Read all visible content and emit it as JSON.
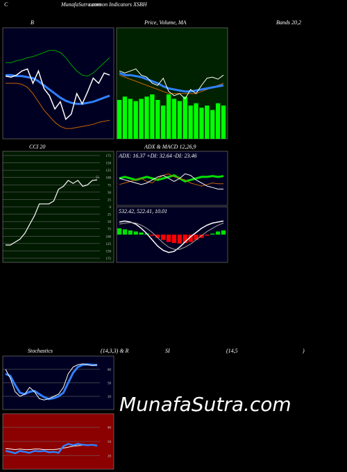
{
  "header": {
    "letter": "C",
    "site": "MunafaSutra.com",
    "title": "common Indicators XSBH"
  },
  "labels": {
    "bb_left": "B",
    "price": "Price, Volume, MA",
    "bb_right": "Bands 20,2",
    "cci": "CCI 20",
    "adx_macd": "ADX  & MACD 12,26,9",
    "stoch": "Stochastics",
    "stoch_params": "(14,3,3) & R",
    "rsi": "SI",
    "rsi_params": "(14,5",
    "close": ")"
  },
  "watermark": "MunafaSutra.com",
  "chart_data": [
    {
      "type": "line",
      "background": "#000022",
      "ylim": [
        0,
        100
      ],
      "series": [
        {
          "color": "#00a000",
          "width": 1,
          "values": [
            70,
            70,
            72,
            73,
            75,
            76,
            78,
            80,
            82,
            82,
            80,
            75,
            68,
            62,
            58,
            57,
            60,
            65,
            70,
            75
          ]
        },
        {
          "color": "#3080ff",
          "width": 3,
          "values": [
            58,
            58,
            57,
            57,
            56,
            55,
            52,
            48,
            44,
            40,
            36,
            33,
            31,
            30,
            30,
            31,
            32,
            34,
            36,
            38
          ]
        },
        {
          "color": "#c86400",
          "width": 1,
          "values": [
            50,
            50,
            50,
            49,
            46,
            40,
            32,
            24,
            18,
            12,
            8,
            6,
            6,
            7,
            8,
            9,
            10,
            12,
            13,
            14
          ]
        },
        {
          "color": "#ffffff",
          "width": 1.5,
          "values": [
            57,
            56,
            58,
            62,
            64,
            50,
            62,
            45,
            38,
            25,
            32,
            15,
            20,
            40,
            30,
            42,
            55,
            50,
            60,
            58
          ]
        }
      ]
    },
    {
      "type": "line",
      "background": "#002200",
      "ylim": [
        0,
        100
      ],
      "y2lim": [
        0,
        100
      ],
      "series": [
        {
          "color": "#00ff00",
          "axis": "y2",
          "style": "bar",
          "values": [
            35,
            38,
            36,
            34,
            36,
            38,
            40,
            35,
            30,
            40,
            36,
            34,
            38,
            30,
            32,
            28,
            30,
            26,
            32,
            30
          ]
        },
        {
          "color": "#c86400",
          "width": 1,
          "values": [
            58,
            56,
            54,
            52,
            50,
            48,
            46,
            44,
            42,
            40,
            40,
            40,
            40,
            40,
            40,
            42,
            44,
            46,
            48,
            50
          ]
        },
        {
          "color": "#3080ff",
          "width": 3,
          "values": [
            60,
            58,
            58,
            57,
            56,
            54,
            52,
            50,
            47,
            45,
            44,
            43,
            42,
            42,
            43,
            44,
            45,
            46,
            47,
            48
          ]
        },
        {
          "color": "#ffffff",
          "width": 1,
          "values": [
            62,
            60,
            62,
            64,
            58,
            56,
            50,
            48,
            55,
            42,
            38,
            40,
            35,
            44,
            40,
            48,
            55,
            56,
            54,
            58
          ]
        }
      ]
    },
    {
      "type": "line",
      "background": "#001a00",
      "grid": true,
      "ylim": [
        -175,
        175
      ],
      "annotation": "55",
      "yticks": [
        {
          "value": 175,
          "label": "175"
        },
        {
          "value": 150,
          "label": "150"
        },
        {
          "value": 125,
          "label": "125"
        },
        {
          "value": 100,
          "label": "100"
        },
        {
          "value": 75,
          "label": "75"
        },
        {
          "value": 50,
          "label": "50"
        },
        {
          "value": 25,
          "label": "25"
        },
        0,
        {
          "value": -25,
          "label": "25"
        },
        {
          "value": -50,
          "label": "50"
        },
        {
          "value": -75,
          "label": "75"
        },
        {
          "value": -100,
          "label": "100"
        },
        {
          "value": -125,
          "label": "125"
        },
        {
          "value": -150,
          "label": "150"
        },
        {
          "value": -175,
          "label": "175"
        }
      ],
      "series": [
        {
          "color": "#ffffff",
          "width": 1.2,
          "values": [
            -130,
            -130,
            -120,
            -110,
            -90,
            -60,
            -30,
            10,
            10,
            10,
            20,
            60,
            70,
            90,
            80,
            90,
            70,
            75,
            90,
            92
          ]
        }
      ]
    },
    {
      "type": "line",
      "background": "#000022",
      "title": "ADX: 16.37 +DI: 32.64 -DI: 23.46",
      "ylim": [
        0,
        60
      ],
      "series": [
        {
          "color": "#00e000",
          "width": 3,
          "values": [
            30,
            32,
            30,
            28,
            30,
            32,
            30,
            28,
            30,
            32,
            34,
            30,
            26,
            28,
            30,
            32,
            32,
            33,
            32,
            33
          ]
        },
        {
          "color": "#c86400",
          "width": 1,
          "values": [
            22,
            24,
            26,
            28,
            30,
            26,
            24,
            30,
            34,
            36,
            32,
            30,
            28,
            24,
            22,
            20,
            22,
            24,
            23,
            23
          ]
        },
        {
          "color": "#ffffff",
          "width": 1,
          "values": [
            30,
            28,
            26,
            24,
            22,
            24,
            28,
            32,
            34,
            30,
            26,
            30,
            36,
            34,
            28,
            24,
            20,
            18,
            16,
            16
          ]
        }
      ]
    },
    {
      "type": "line",
      "background": "#000022",
      "title": "532.42, 522.41, 10.01",
      "ylim": [
        -45,
        45
      ],
      "series": [
        {
          "color": "#00e000",
          "negative_color": "#ff0000",
          "style": "bar",
          "values": [
            12,
            10,
            8,
            6,
            4,
            2,
            -2,
            -6,
            -10,
            -14,
            -16,
            -17,
            -16,
            -14,
            -10,
            -6,
            -2,
            2,
            6,
            8
          ]
        },
        {
          "color": "#ffffff",
          "width": 1.5,
          "values": [
            24,
            26,
            24,
            20,
            12,
            2,
            -10,
            -22,
            -30,
            -34,
            -32,
            -24,
            -14,
            -4,
            4,
            12,
            18,
            22,
            24,
            26
          ]
        },
        {
          "color": "#aaaaaa",
          "width": 1,
          "values": [
            20,
            22,
            23,
            22,
            18,
            12,
            4,
            -6,
            -16,
            -24,
            -28,
            -28,
            -24,
            -18,
            -10,
            -2,
            6,
            12,
            18,
            22
          ]
        }
      ]
    },
    {
      "type": "line",
      "background": "#000022",
      "grid": true,
      "ylim": [
        0,
        100
      ],
      "yticks": [
        20,
        50,
        80
      ],
      "series": [
        {
          "color": "#3080ff",
          "width": 3,
          "values": [
            70,
            65,
            45,
            28,
            25,
            30,
            32,
            25,
            18,
            14,
            16,
            20,
            28,
            50,
            72,
            85,
            90,
            91,
            90,
            89
          ]
        },
        {
          "color": "#ffffff",
          "width": 1,
          "values": [
            80,
            60,
            30,
            20,
            25,
            40,
            30,
            15,
            12,
            15,
            20,
            25,
            40,
            70,
            85,
            90,
            92,
            90,
            88,
            90
          ]
        }
      ]
    },
    {
      "type": "line",
      "background": "#8b0000",
      "grid": true,
      "ylim": [
        0,
        100
      ],
      "yticks": [
        20,
        50,
        80
      ],
      "series": [
        {
          "color": "#ffffff",
          "width": 1,
          "values": [
            35,
            34,
            33,
            34,
            33,
            33,
            34,
            34,
            33,
            33,
            33,
            34,
            36,
            38,
            40,
            41,
            42,
            42,
            42,
            42
          ]
        },
        {
          "color": "#3080ff",
          "width": 2.5,
          "values": [
            30,
            28,
            25,
            30,
            28,
            26,
            30,
            29,
            30,
            27,
            28,
            26,
            40,
            45,
            42,
            45,
            43,
            42,
            43,
            41
          ]
        }
      ]
    }
  ]
}
